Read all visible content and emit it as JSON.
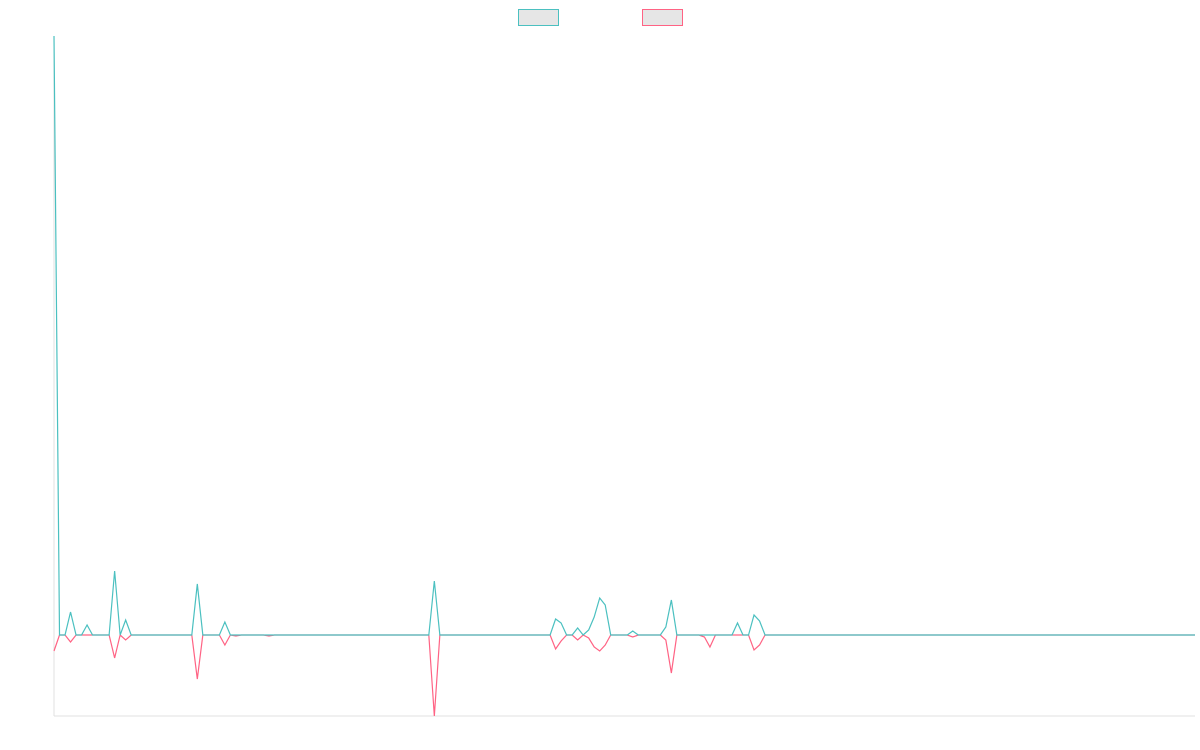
{
  "chart_data": {
    "type": "line",
    "legend": "top",
    "ylim": [
      -81,
      599
    ],
    "series": [
      {
        "color": "#4bc0c0",
        "values": [
          599,
          0,
          0,
          23,
          0,
          0,
          10,
          0,
          0,
          0,
          0,
          64,
          0,
          15,
          0,
          0,
          0,
          0,
          0,
          0,
          0,
          0,
          0,
          0,
          0,
          0,
          51,
          0,
          0,
          0,
          0,
          13,
          0,
          0,
          0,
          0,
          0,
          0,
          0,
          0,
          0,
          0,
          0,
          0,
          0,
          0,
          0,
          0,
          0,
          0,
          0,
          0,
          0,
          0,
          0,
          0,
          0,
          0,
          0,
          0,
          0,
          0,
          0,
          0,
          0,
          0,
          0,
          0,
          0,
          54,
          0,
          0,
          0,
          0,
          0,
          0,
          0,
          0,
          0,
          0,
          0,
          0,
          0,
          0,
          0,
          0,
          0,
          0,
          0,
          0,
          0,
          16,
          12,
          0,
          0,
          7,
          0,
          5,
          18,
          37,
          30,
          0,
          0,
          0,
          0,
          4,
          0,
          0,
          0,
          0,
          0,
          8,
          35,
          0,
          0,
          0,
          0,
          0,
          0,
          0,
          0,
          0,
          0,
          0,
          12,
          0,
          0,
          20,
          14,
          0,
          0,
          0,
          0,
          0,
          0,
          0,
          0,
          0,
          0,
          0,
          0,
          0,
          0,
          0,
          0,
          0,
          0,
          0,
          0,
          0,
          0,
          0,
          0,
          0,
          0,
          0,
          0,
          0,
          0,
          0,
          0,
          0,
          0,
          0,
          0,
          0,
          0,
          0,
          0,
          0,
          0,
          0,
          0,
          0,
          0,
          0,
          0,
          0,
          0,
          0,
          0,
          0,
          0,
          0,
          0,
          0,
          0,
          0,
          0,
          0,
          0,
          0,
          0,
          0,
          0,
          0,
          0,
          0,
          0,
          0,
          0,
          0,
          0,
          0,
          0,
          0,
          0,
          0
        ]
      },
      {
        "color": "#ff6384",
        "values": [
          -16,
          0,
          0,
          -7,
          0,
          0,
          0,
          0,
          0,
          0,
          0,
          -23,
          0,
          -5,
          0,
          0,
          0,
          0,
          0,
          0,
          0,
          0,
          0,
          0,
          0,
          0,
          -44,
          0,
          0,
          0,
          0,
          -10,
          0,
          -1,
          0,
          0,
          0,
          0,
          0,
          -1,
          0,
          0,
          0,
          0,
          0,
          0,
          0,
          0,
          0,
          0,
          0,
          0,
          0,
          0,
          0,
          0,
          0,
          0,
          0,
          0,
          0,
          0,
          0,
          0,
          0,
          0,
          0,
          0,
          0,
          -81,
          0,
          0,
          0,
          0,
          0,
          0,
          0,
          0,
          0,
          0,
          0,
          0,
          0,
          0,
          0,
          0,
          0,
          0,
          0,
          0,
          0,
          -14,
          -6,
          0,
          0,
          -5,
          0,
          -3,
          -12,
          -16,
          -10,
          0,
          0,
          0,
          0,
          -2,
          0,
          0,
          0,
          0,
          0,
          -5,
          -38,
          0,
          0,
          0,
          0,
          0,
          -2,
          -12,
          0,
          0,
          0,
          0,
          0,
          0,
          0,
          -15,
          -10,
          0,
          0,
          0,
          0,
          0,
          0,
          0,
          0,
          0,
          0,
          0,
          0,
          0,
          0,
          0,
          0,
          0,
          0,
          0,
          0,
          0,
          0,
          0,
          0,
          0,
          0,
          0,
          0,
          0,
          0,
          0,
          0,
          0,
          0,
          0,
          0,
          0,
          0,
          0,
          0,
          0,
          0,
          0,
          0,
          0,
          0,
          0,
          0,
          0,
          0,
          0,
          0,
          0,
          0,
          0,
          0,
          0,
          0,
          0,
          0,
          0,
          0,
          0,
          0,
          0,
          0,
          0,
          0,
          0,
          0,
          0,
          0,
          0,
          0,
          0,
          0,
          0,
          0,
          0
        ]
      }
    ]
  }
}
